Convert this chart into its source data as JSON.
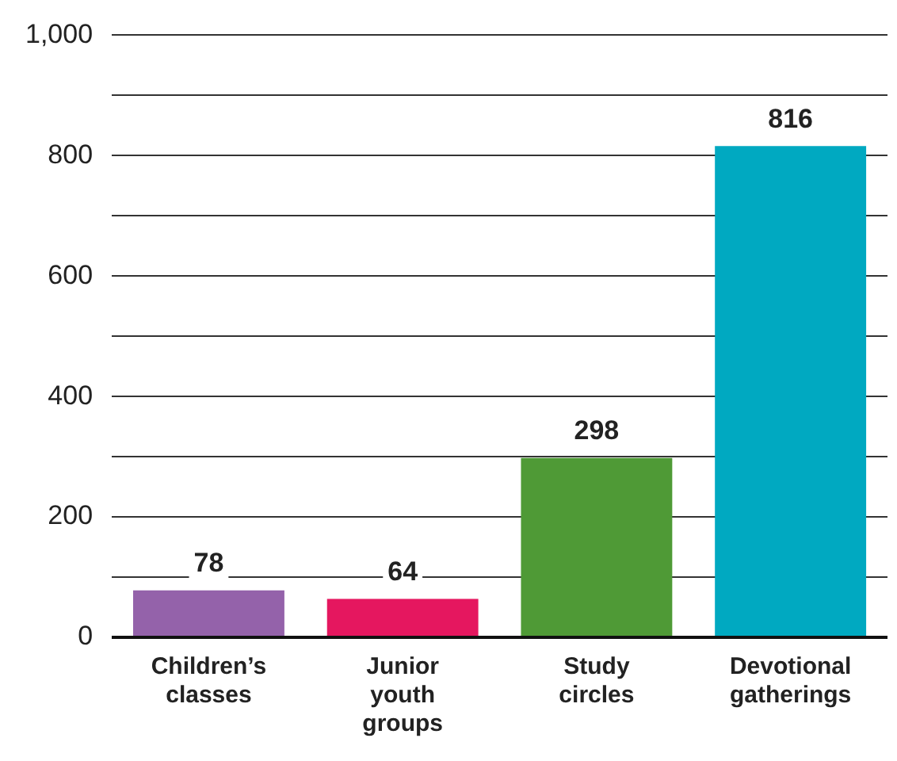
{
  "chart_data": {
    "type": "bar",
    "categories": [
      "Children’s classes",
      "Junior youth groups",
      "Study circles",
      "Devotional gatherings"
    ],
    "values": [
      78,
      64,
      298,
      816
    ],
    "colors": [
      "#9462aa",
      "#e5175f",
      "#4f9a36",
      "#00a9c1"
    ],
    "ylim": [
      0,
      1000
    ],
    "yticks": [
      0,
      {
        "value": 100,
        "label": null
      },
      200,
      {
        "value": 300,
        "label": null
      },
      400,
      {
        "value": 500,
        "label": null
      },
      600,
      {
        "value": 700,
        "label": null
      },
      800,
      {
        "value": 900,
        "label": null
      },
      {
        "value": 1000,
        "label": "1,000"
      }
    ],
    "grid": "y",
    "data_labels": true
  }
}
